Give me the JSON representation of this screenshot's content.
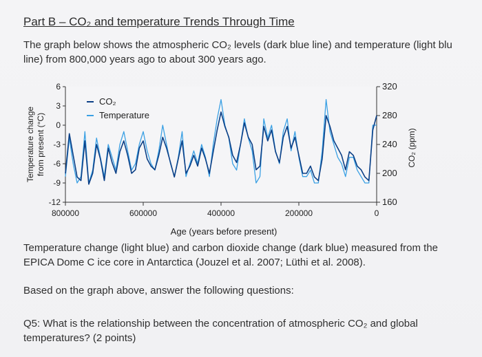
{
  "heading": "Part B – CO₂ and temperature Trends Through Time",
  "intro_lines": [
    "The graph below shows the atmospheric CO₂ levels (dark blue line) and temperature (light blu",
    "line) from 800,000 years ago to about 300 years ago."
  ],
  "caption_lines": [
    "Temperature change (light blue) and carbon dioxide change (dark blue) measured from the",
    "EPICA Dome C ice core in Antarctica (Jouzel et al. 2007; Lüthi et al. 2008)."
  ],
  "instruction": "Based on the graph above, answer the following questions:",
  "question_lines": [
    "Q5: What is the relationship between the concentration of atmospheric CO₂ and global",
    "temperatures? (2 points)"
  ],
  "colors": {
    "co2": "#0b3f86",
    "temperature": "#3aa0e4"
  },
  "chart_data": {
    "type": "line",
    "xlabel": "Age (years before present)",
    "ylabel_left": [
      "Temperature change",
      "from present (°C)"
    ],
    "ylabel_right": "CO₂ (ppm)",
    "x_reversed": true,
    "xlim": [
      800000,
      0
    ],
    "x_ticks": [
      800000,
      600000,
      400000,
      200000,
      0
    ],
    "x_tick_labels": [
      "800000",
      "600000",
      "400000",
      "200000",
      "0"
    ],
    "ylim_left": [
      -12,
      6
    ],
    "y_ticks_left": [
      6,
      3,
      0,
      -3,
      -6,
      -9,
      -12
    ],
    "ylim_right": [
      160,
      320
    ],
    "y_ticks_right": [
      320,
      280,
      240,
      200,
      160
    ],
    "legend": [
      "CO₂",
      "Temperature"
    ],
    "legend_position": "top-left",
    "series": [
      {
        "name": "CO₂",
        "axis": "right",
        "x": [
          800000,
          790000,
          780000,
          770000,
          760000,
          750000,
          740000,
          730000,
          720000,
          710000,
          700000,
          690000,
          680000,
          670000,
          660000,
          650000,
          640000,
          630000,
          620000,
          610000,
          600000,
          590000,
          580000,
          570000,
          560000,
          550000,
          540000,
          530000,
          520000,
          510000,
          500000,
          490000,
          480000,
          470000,
          460000,
          450000,
          440000,
          430000,
          420000,
          410000,
          400000,
          390000,
          380000,
          370000,
          360000,
          350000,
          340000,
          330000,
          320000,
          310000,
          300000,
          290000,
          280000,
          270000,
          260000,
          250000,
          240000,
          230000,
          220000,
          210000,
          200000,
          190000,
          180000,
          170000,
          160000,
          150000,
          140000,
          130000,
          120000,
          110000,
          100000,
          90000,
          80000,
          70000,
          60000,
          50000,
          40000,
          30000,
          20000,
          10000,
          0
        ],
        "values": [
          200,
          255,
          225,
          195,
          190,
          245,
          185,
          200,
          240,
          220,
          190,
          235,
          215,
          200,
          230,
          245,
          225,
          200,
          205,
          235,
          245,
          220,
          210,
          205,
          225,
          250,
          235,
          215,
          195,
          220,
          245,
          200,
          210,
          225,
          210,
          235,
          220,
          200,
          230,
          260,
          285,
          265,
          250,
          225,
          215,
          240,
          270,
          250,
          240,
          205,
          210,
          265,
          245,
          260,
          230,
          215,
          250,
          265,
          235,
          250,
          225,
          200,
          200,
          210,
          195,
          190,
          220,
          280,
          265,
          245,
          235,
          225,
          205,
          230,
          225,
          210,
          205,
          195,
          190,
          260,
          280
        ]
      },
      {
        "name": "Temperature",
        "axis": "left",
        "x": [
          800000,
          790000,
          780000,
          770000,
          760000,
          750000,
          740000,
          730000,
          720000,
          710000,
          700000,
          690000,
          680000,
          670000,
          660000,
          650000,
          640000,
          630000,
          620000,
          610000,
          600000,
          590000,
          580000,
          570000,
          560000,
          550000,
          540000,
          530000,
          520000,
          510000,
          500000,
          490000,
          480000,
          470000,
          460000,
          450000,
          440000,
          430000,
          420000,
          410000,
          400000,
          390000,
          380000,
          370000,
          360000,
          350000,
          340000,
          330000,
          320000,
          310000,
          300000,
          290000,
          280000,
          270000,
          260000,
          250000,
          240000,
          230000,
          220000,
          210000,
          200000,
          190000,
          180000,
          170000,
          160000,
          150000,
          140000,
          130000,
          120000,
          110000,
          100000,
          90000,
          80000,
          70000,
          60000,
          50000,
          40000,
          30000,
          20000,
          10000,
          0
        ],
        "values": [
          -8,
          -2,
          -6,
          -9,
          -8,
          -1,
          -9,
          -7,
          -2,
          -5,
          -8,
          -3,
          -5,
          -7,
          -3,
          -1,
          -4,
          -7,
          -6,
          -3,
          -1,
          -4,
          -6,
          -7,
          -4,
          0,
          -3,
          -6,
          -8,
          -5,
          -1,
          -8,
          -6,
          -4,
          -6,
          -3,
          -5,
          -8,
          -3,
          1,
          4,
          0,
          -2,
          -6,
          -7,
          -3,
          1,
          -2,
          -4,
          -9,
          -8,
          1,
          -2,
          0,
          -4,
          -6,
          -1,
          1,
          -4,
          -1,
          -5,
          -8,
          -8,
          -7,
          -9,
          -9,
          -4,
          4,
          -1,
          -3,
          -5,
          -6,
          -8,
          -5,
          -5,
          -7,
          -8,
          -9,
          -9,
          0,
          0
        ]
      }
    ]
  }
}
